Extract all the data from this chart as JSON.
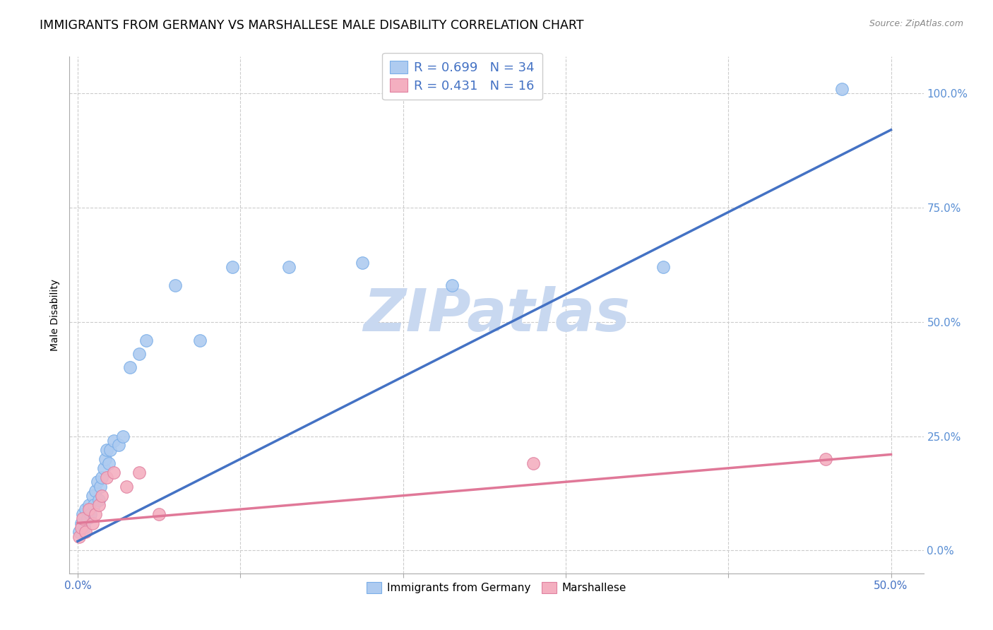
{
  "title": "IMMIGRANTS FROM GERMANY VS MARSHALLESE MALE DISABILITY CORRELATION CHART",
  "source": "Source: ZipAtlas.com",
  "ylabel": "Male Disability",
  "legend_label1": "Immigrants from Germany",
  "legend_label2": "Marshallese",
  "legend_r1": "R = 0.699   N = 34",
  "legend_r2": "R = 0.431   N = 16",
  "watermark": "ZIPatlas",
  "blue_scatter_x": [
    0.001,
    0.002,
    0.003,
    0.004,
    0.005,
    0.006,
    0.007,
    0.008,
    0.009,
    0.01,
    0.011,
    0.012,
    0.013,
    0.014,
    0.015,
    0.016,
    0.017,
    0.018,
    0.019,
    0.02,
    0.022,
    0.025,
    0.028,
    0.032,
    0.038,
    0.042,
    0.06,
    0.075,
    0.095,
    0.13,
    0.175,
    0.23,
    0.36,
    0.47
  ],
  "blue_scatter_y": [
    0.04,
    0.06,
    0.08,
    0.05,
    0.09,
    0.07,
    0.1,
    0.08,
    0.12,
    0.1,
    0.13,
    0.15,
    0.11,
    0.14,
    0.16,
    0.18,
    0.2,
    0.22,
    0.19,
    0.22,
    0.24,
    0.23,
    0.25,
    0.4,
    0.43,
    0.46,
    0.58,
    0.46,
    0.62,
    0.62,
    0.63,
    0.58,
    0.62,
    1.01
  ],
  "pink_scatter_x": [
    0.001,
    0.002,
    0.003,
    0.005,
    0.007,
    0.009,
    0.011,
    0.013,
    0.015,
    0.018,
    0.022,
    0.03,
    0.038,
    0.05,
    0.28,
    0.46
  ],
  "pink_scatter_y": [
    0.03,
    0.05,
    0.07,
    0.04,
    0.09,
    0.06,
    0.08,
    0.1,
    0.12,
    0.16,
    0.17,
    0.14,
    0.17,
    0.08,
    0.19,
    0.2
  ],
  "blue_line_x": [
    0.0,
    0.5
  ],
  "blue_line_y": [
    0.02,
    0.92
  ],
  "pink_line_x": [
    0.0,
    0.5
  ],
  "pink_line_y": [
    0.06,
    0.21
  ],
  "xlim": [
    -0.005,
    0.52
  ],
  "ylim": [
    -0.05,
    1.08
  ],
  "yticks": [
    0.0,
    0.25,
    0.5,
    0.75,
    1.0
  ],
  "ytick_labels": [
    "0.0%",
    "25.0%",
    "50.0%",
    "75.0%",
    "100.0%"
  ],
  "xticks": [
    0.0,
    0.1,
    0.2,
    0.3,
    0.4,
    0.5
  ],
  "blue_color": "#aecbf0",
  "blue_edge": "#7aaee8",
  "blue_line_color": "#4472c4",
  "pink_color": "#f4afc0",
  "pink_edge": "#e080a0",
  "pink_line_color": "#e07898",
  "background_color": "#ffffff",
  "grid_color": "#cccccc",
  "title_fontsize": 12.5,
  "axis_label_fontsize": 10,
  "tick_fontsize": 11,
  "right_tick_color": "#5a8fd4",
  "x_tick_color": "#4472c4",
  "watermark_color": "#c8d8f0",
  "watermark_fontsize": 60,
  "source_fontsize": 9
}
